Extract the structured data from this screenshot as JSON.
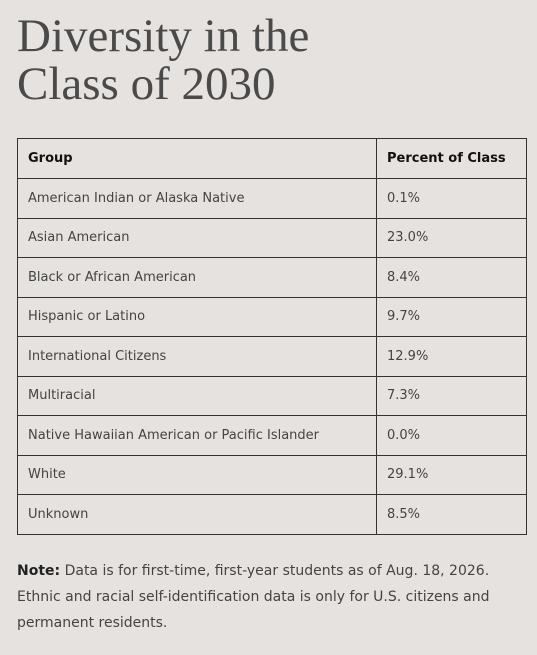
{
  "header": {
    "title": "Diversity in the Class of 2030"
  },
  "table": {
    "columns": [
      "Group",
      "Percent of Class"
    ],
    "rows": [
      [
        "American Indian or Alaska Native",
        "0.1%"
      ],
      [
        "Asian American",
        "23.0%"
      ],
      [
        "Black or African American",
        "8.4%"
      ],
      [
        "Hispanic or Latino",
        "9.7%"
      ],
      [
        "International Citizens",
        "12.9%"
      ],
      [
        "Multiracial",
        "7.3%"
      ],
      [
        "Native Hawaiian American or Pacific Islander",
        "0.0%"
      ],
      [
        "White",
        "29.1%"
      ],
      [
        "Unknown",
        "8.5%"
      ]
    ]
  },
  "note": {
    "label": "Note:",
    "text": "Data is for first-time, first-year students as of Aug. 18, 2026. Ethnic and racial self-identification data is only for U.S. citizens and permanent residents."
  }
}
